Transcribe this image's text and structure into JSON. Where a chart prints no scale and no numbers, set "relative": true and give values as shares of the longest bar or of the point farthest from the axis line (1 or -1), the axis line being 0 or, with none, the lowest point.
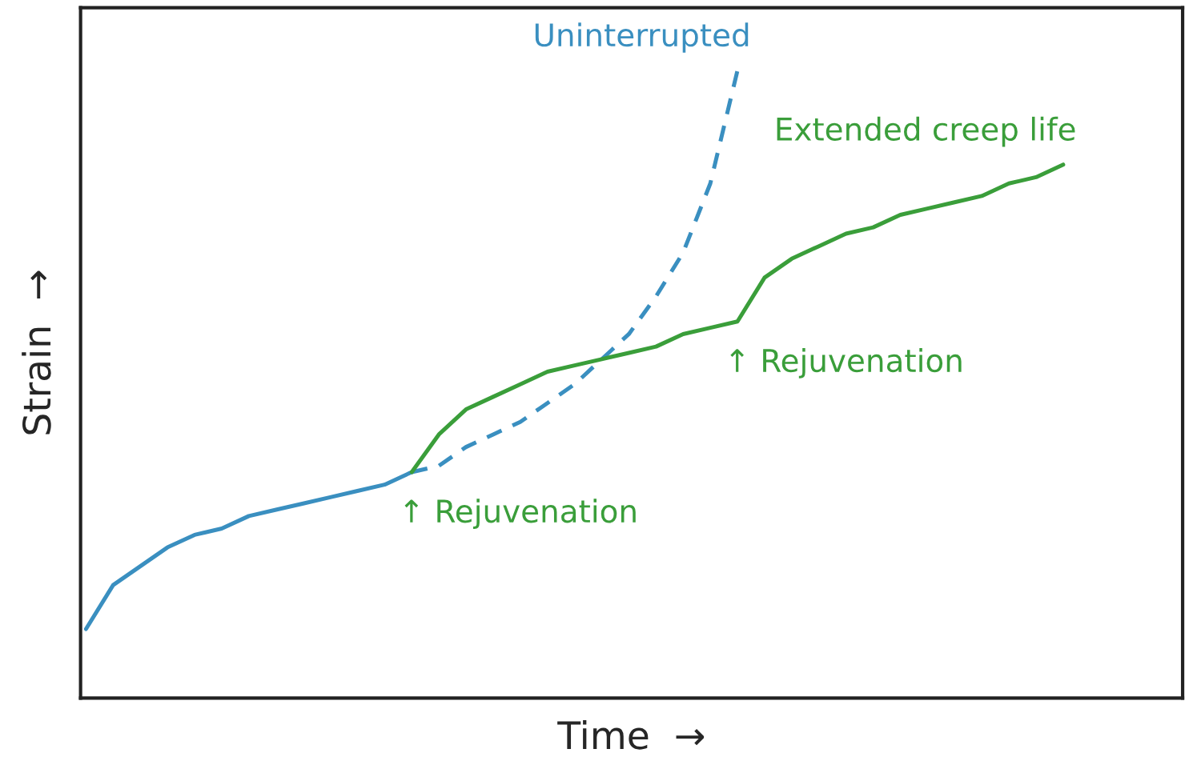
{
  "chart_data": {
    "type": "line",
    "relative": true,
    "xlabel": "Time  →",
    "ylabel": "Strain  →",
    "legend": false,
    "marker": "none",
    "categories": [
      null,
      null,
      null,
      null,
      null,
      null,
      null,
      null,
      null,
      null,
      null,
      null,
      null,
      null,
      null,
      null,
      null,
      null,
      null,
      null,
      null,
      null,
      null,
      null,
      null,
      null,
      null,
      null,
      null,
      null,
      null,
      null,
      null,
      null,
      null,
      null,
      null,
      null,
      null,
      null,
      null
    ],
    "series": [
      {
        "color": "#3a8fc0",
        "line_style": "solid",
        "values": [
          0.11,
          0.18,
          0.21,
          0.24,
          0.26,
          0.27,
          0.29,
          0.3,
          0.31,
          0.32,
          0.33,
          0.34,
          0.36,
          null,
          null,
          null,
          null,
          null,
          null,
          null,
          null,
          null,
          null,
          null,
          null,
          null,
          null,
          null,
          null,
          null,
          null,
          null,
          null,
          null,
          null,
          null,
          null,
          null,
          null,
          null,
          null
        ]
      },
      {
        "name": "Uninterrupted",
        "color": "#3a8fc0",
        "line_style": "dashed",
        "values": [
          null,
          null,
          null,
          null,
          null,
          null,
          null,
          null,
          null,
          null,
          null,
          null,
          0.36,
          0.37,
          0.4,
          0.42,
          0.44,
          0.47,
          0.5,
          0.54,
          0.58,
          0.64,
          0.71,
          0.82,
          1.0,
          null,
          null,
          null,
          null,
          null,
          null,
          null,
          null,
          null,
          null,
          null,
          null,
          null,
          null,
          null,
          null
        ]
      },
      {
        "name": "Extended creep life",
        "color": "#3a9e3a",
        "line_style": "solid",
        "values": [
          null,
          null,
          null,
          null,
          null,
          null,
          null,
          null,
          null,
          null,
          null,
          null,
          0.36,
          0.42,
          0.46,
          0.48,
          0.5,
          0.52,
          0.53,
          0.54,
          0.55,
          0.56,
          0.58,
          0.59,
          0.6,
          0.67,
          0.7,
          0.72,
          0.74,
          0.75,
          0.77,
          0.78,
          0.79,
          0.8,
          0.82,
          0.83,
          0.85,
          null,
          null,
          null,
          null
        ]
      }
    ],
    "annotations": [
      "↑ Rejuvenation",
      "↑ Rejuvenation"
    ]
  }
}
